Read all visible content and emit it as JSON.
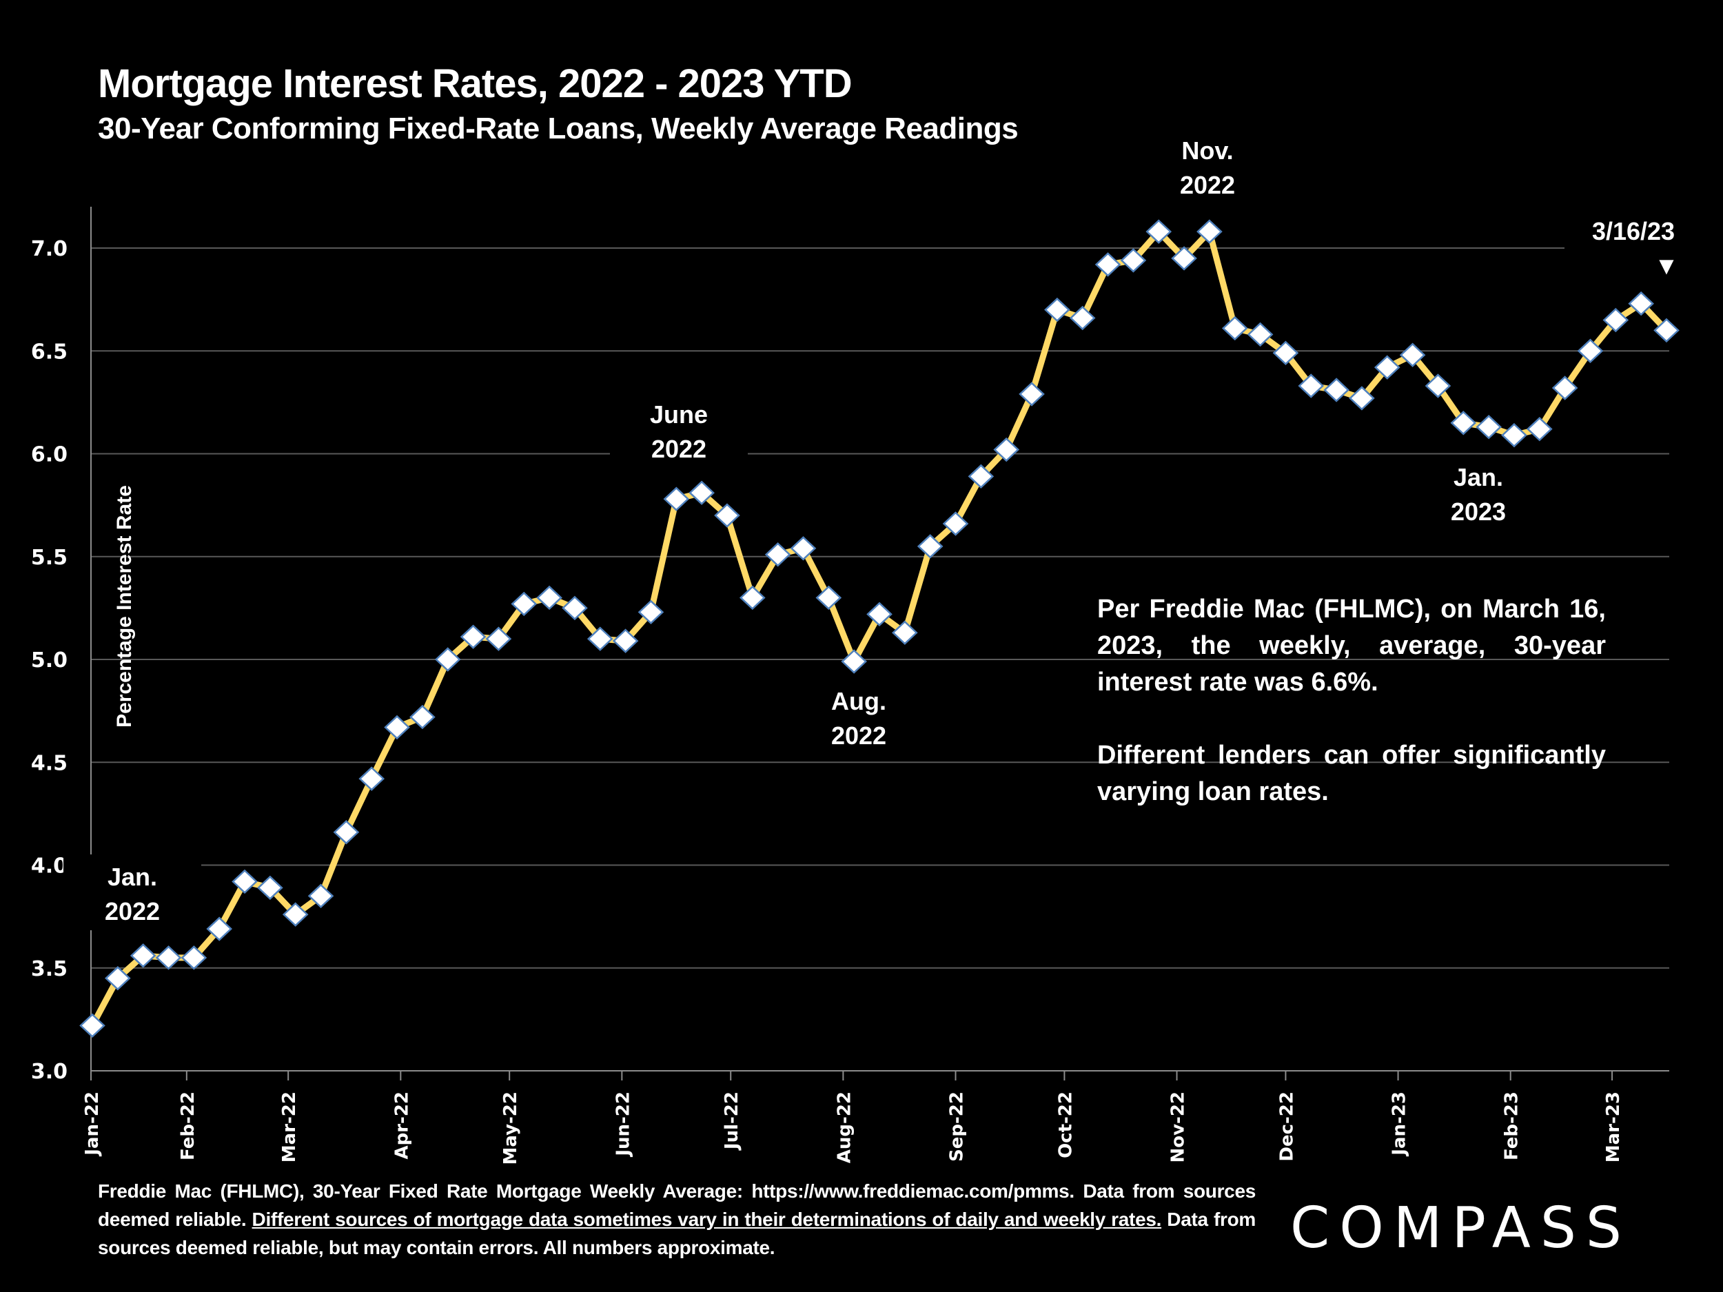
{
  "header": {
    "title": "Mortgage Interest Rates, 2022 - 2023 YTD",
    "subtitle": "30-Year Conforming Fixed-Rate Loans, Weekly Average Readings"
  },
  "colors": {
    "background": "#000000",
    "line": "#FFD966",
    "marker_fill": "#FFFFFF",
    "marker_stroke": "#4F81BD",
    "grid": "#595959",
    "text": "#FFFFFF"
  },
  "chart_data": {
    "type": "line",
    "title": "Mortgage Interest Rates, 2022 - 2023 YTD",
    "subtitle": "30-Year Conforming Fixed-Rate Loans, Weekly Average Readings",
    "xlabel": "",
    "ylabel": "Percentage Interest  Rate",
    "ylim": [
      3.0,
      7.0
    ],
    "yticks": [
      "3.0",
      "3.5",
      "4.0",
      "4.5",
      "5.0",
      "5.5",
      "6.0",
      "6.5",
      "7.0"
    ],
    "grid": true,
    "legend": "none",
    "x_start": "2022-01-06",
    "x_step_days": 7,
    "xtick_labels": [
      "Jan-22",
      "Feb-22",
      "Mar-22",
      "Apr-22",
      "May-22",
      "Jun-22",
      "Jul-22",
      "Aug-22",
      "Sep-22",
      "Oct-22",
      "Nov-22",
      "Dec-22",
      "Jan-23",
      "Feb-23",
      "Mar-23"
    ],
    "xtick_dates": [
      "2022-01-01",
      "2022-02-01",
      "2022-03-01",
      "2022-04-01",
      "2022-05-01",
      "2022-06-01",
      "2022-07-01",
      "2022-08-01",
      "2022-09-01",
      "2022-10-01",
      "2022-11-01",
      "2022-12-01",
      "2023-01-01",
      "2023-02-01",
      "2023-03-01"
    ],
    "series": [
      {
        "name": "30-Year Fixed Rate (weekly average)",
        "values": [
          3.22,
          3.45,
          3.56,
          3.55,
          3.55,
          3.69,
          3.92,
          3.89,
          3.76,
          3.85,
          4.16,
          4.42,
          4.67,
          4.72,
          5.0,
          5.11,
          5.1,
          5.27,
          5.3,
          5.25,
          5.1,
          5.09,
          5.23,
          5.78,
          5.81,
          5.7,
          5.3,
          5.51,
          5.54,
          5.3,
          4.99,
          5.22,
          5.13,
          5.55,
          5.66,
          5.89,
          6.02,
          6.29,
          6.7,
          6.66,
          6.92,
          6.94,
          7.08,
          6.95,
          7.08,
          6.61,
          6.58,
          6.49,
          6.33,
          6.31,
          6.27,
          6.42,
          6.48,
          6.33,
          6.15,
          6.13,
          6.09,
          6.12,
          6.32,
          6.5,
          6.65,
          6.73,
          6.6
        ]
      }
    ],
    "annotations": [
      {
        "lines": [
          "Jan.",
          "2022"
        ],
        "index": 1
      },
      {
        "lines": [
          "June",
          "2022"
        ],
        "index": 23
      },
      {
        "lines": [
          "Aug.",
          "2022"
        ],
        "index": 30
      },
      {
        "lines": [
          "Nov.",
          "2022"
        ],
        "index": 44
      },
      {
        "lines": [
          "Jan.",
          "2023"
        ],
        "index": 55
      },
      {
        "lines": [
          "3/16/23",
          "▼"
        ],
        "index": 62
      }
    ]
  },
  "note": {
    "paragraph1": "Per Freddie Mac (FHLMC), on March 16, 2023, the weekly, average, 30-year interest rate was 6.6%.",
    "paragraph2": "Different lenders can offer significantly varying loan rates."
  },
  "footer": {
    "part1": "Freddie Mac (FHLMC), 30-Year Fixed Rate Mortgage Weekly Average:  https://www.freddiemac.com/pmms. Data from sources deemed reliable. ",
    "underlined": "Different sources of mortgage data sometimes vary in their determinations of daily and weekly rates.",
    "part2": " Data from sources deemed reliable, but may contain errors. All numbers approximate."
  },
  "logo": {
    "text": "COMPASS"
  }
}
